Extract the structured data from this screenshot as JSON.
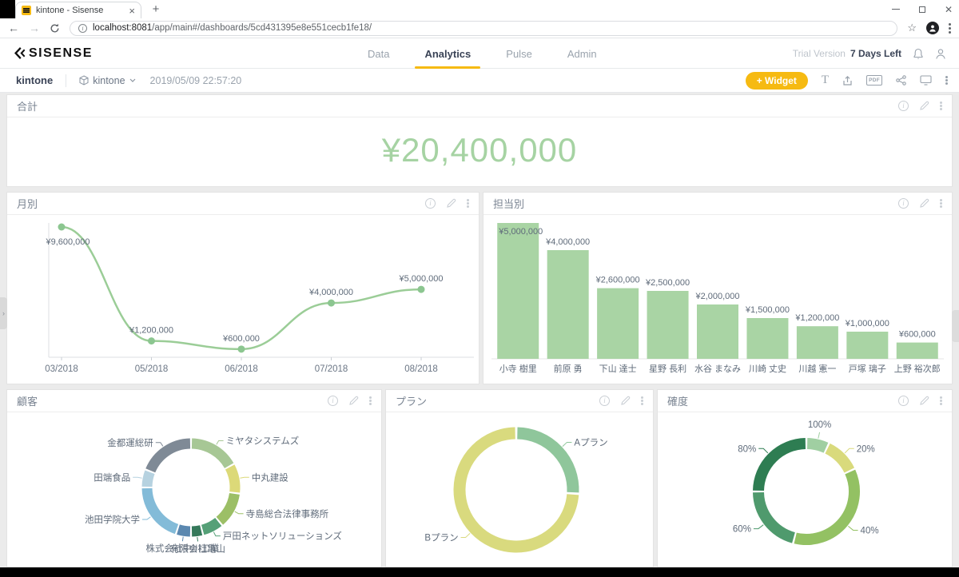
{
  "browser": {
    "tab_title": "kintone - Sisense",
    "url_host": "localhost:8081",
    "url_path": "/app/main#/dashboards/5cd431395e8e551cecb1fe18/"
  },
  "header": {
    "logo_text": "SISENSE",
    "nav": [
      {
        "label": "Data"
      },
      {
        "label": "Analytics"
      },
      {
        "label": "Pulse"
      },
      {
        "label": "Admin"
      }
    ],
    "active_nav": "Analytics",
    "trial_label": "Trial Version",
    "trial_value": "7 Days Left"
  },
  "toolbar": {
    "dashboard_title": "kintone",
    "datasource_name": "kintone",
    "timestamp": "2019/05/09 22:57:20",
    "widget_button_label": "+ Widget",
    "text_tool_label": "T",
    "pdf_badge_label": "PDF"
  },
  "chart_data": [
    {
      "id": "total",
      "type": "indicator",
      "title": "合計",
      "value": "¥20,400,000",
      "color": "#a6d3a3"
    },
    {
      "id": "monthly",
      "type": "line",
      "title": "月別",
      "x": [
        "03/2018",
        "05/2018",
        "06/2018",
        "07/2018",
        "08/2018"
      ],
      "values": [
        9600000,
        1200000,
        600000,
        4000000,
        5000000
      ],
      "point_labels": [
        "¥9,600,000",
        "¥1,200,000",
        "¥600,000",
        "¥4,000,000",
        "¥5,000,000"
      ],
      "ylim": [
        0,
        9600000
      ],
      "color": "#9bcd97",
      "marker_color": "#8cc690",
      "grid": false,
      "legend": "none"
    },
    {
      "id": "by_rep",
      "type": "bar",
      "title": "担当別",
      "categories": [
        "小寺 樹里",
        "前原 勇",
        "下山 達士",
        "星野 長利",
        "水谷 まなみ",
        "川崎 丈史",
        "川越 憲一",
        "戸塚 璃子",
        "上野 裕次郎"
      ],
      "values": [
        5000000,
        4000000,
        2600000,
        2500000,
        2000000,
        1500000,
        1200000,
        1000000,
        600000
      ],
      "value_labels": [
        "¥5,000,000",
        "¥4,000,000",
        "¥2,600,000",
        "¥2,500,000",
        "¥2,000,000",
        "¥1,500,000",
        "¥1,200,000",
        "¥1,000,000",
        "¥600,000"
      ],
      "ylim": [
        0,
        5000000
      ],
      "color": "#a9d4a4",
      "grid": false,
      "legend": "none"
    },
    {
      "id": "customers",
      "type": "donut",
      "title": "顧客",
      "slices": [
        {
          "label": "ミヤタシステムズ",
          "pct": 17,
          "color": "#a7c795"
        },
        {
          "label": "中丸建設",
          "pct": 10,
          "color": "#dcd978"
        },
        {
          "label": "寺島総合法律事務所",
          "pct": 12,
          "color": "#9cbf66"
        },
        {
          "label": "戸田ネットソリューションズ",
          "pct": 7,
          "color": "#55a077"
        },
        {
          "label": "有限会社亀山",
          "pct": 4,
          "color": "#35795b"
        },
        {
          "label": "株式会社中川工業",
          "pct": 5,
          "color": "#5b88b0"
        },
        {
          "label": "池田学院大学",
          "pct": 20,
          "color": "#83bbd8"
        },
        {
          "label": "田端食品",
          "pct": 6,
          "color": "#b6d2e0"
        },
        {
          "label": "金都運総研",
          "pct": 19,
          "color": "#7f8a96"
        }
      ],
      "legend": "none"
    },
    {
      "id": "plan",
      "type": "donut",
      "title": "プラン",
      "slices": [
        {
          "label": "Aプラン",
          "pct": 26,
          "color": "#8fc69b"
        },
        {
          "label": "Bプラン",
          "pct": 74,
          "color": "#d9da7e"
        }
      ],
      "legend": "none"
    },
    {
      "id": "probability",
      "type": "donut",
      "title": "確度",
      "slices": [
        {
          "label": "100%",
          "pct": 7,
          "color": "#a0cfa2"
        },
        {
          "label": "20%",
          "pct": 11,
          "color": "#d9da7c"
        },
        {
          "label": "40%",
          "pct": 36,
          "color": "#93c163"
        },
        {
          "label": "60%",
          "pct": 21,
          "color": "#4f9a6d"
        },
        {
          "label": "80%",
          "pct": 25,
          "color": "#2e7d52"
        }
      ],
      "legend": "none"
    }
  ]
}
